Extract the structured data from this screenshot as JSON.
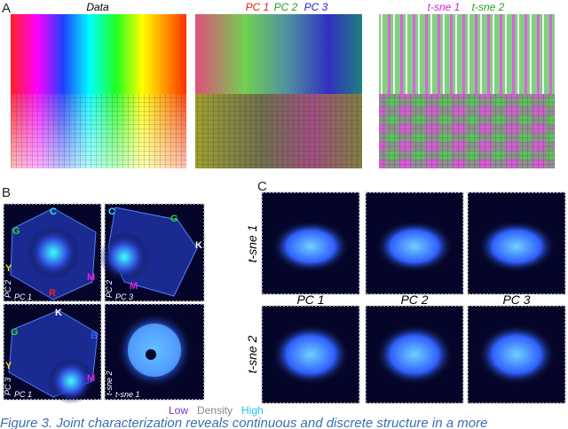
{
  "panel_a": {
    "label": "A",
    "data_title": "Data",
    "pca_titles": [
      "PC 1",
      "PC 2",
      "PC 3"
    ],
    "tsne_titles": [
      "t-sne 1",
      "t-sne 2"
    ]
  },
  "panel_b": {
    "label": "B",
    "cube_1": {
      "corners": [
        "C",
        "G",
        "Y",
        "R",
        "M"
      ],
      "axes": [
        "PC 2",
        "PC 1"
      ]
    },
    "cube_2": {
      "corners": [
        "C",
        "G",
        "K",
        "M"
      ],
      "axes": [
        "PC 2",
        "PC 3"
      ]
    },
    "cube_3": {
      "corners": [
        "K",
        "G",
        "B",
        "Y",
        "M"
      ],
      "axes": [
        "PC 3",
        "PC 1"
      ]
    },
    "tsne": {
      "axes": [
        "t-sne 2",
        "t-sne 1"
      ]
    },
    "legend": [
      "Low",
      "Density",
      "High"
    ]
  },
  "panel_c": {
    "label": "C",
    "columns": [
      "PC 1",
      "PC 2",
      "PC 3"
    ],
    "rows": [
      "t-sne 1",
      "t-sne 2"
    ]
  },
  "caption": "Figure 3. Joint characterization reveals continuous and discrete structure in a more"
}
